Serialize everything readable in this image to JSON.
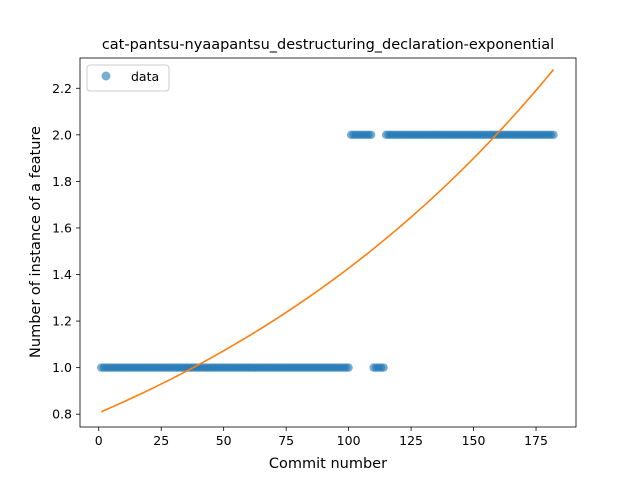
{
  "chart_data": {
    "type": "scatter",
    "title": "cat-pantsu-nyaapantsu_destructuring_declaration-exponential",
    "xlabel": "Commit number",
    "ylabel": "Number of instance of a feature",
    "xlim": [
      -7.5,
      191
    ],
    "ylim": [
      0.745,
      2.33
    ],
    "xticks": [
      0,
      25,
      50,
      75,
      100,
      125,
      150,
      175
    ],
    "yticks": [
      0.8,
      1.0,
      1.2,
      1.4,
      1.6,
      1.8,
      2.0,
      2.2
    ],
    "ytick_labels": [
      "0.8",
      "1.0",
      "1.2",
      "1.4",
      "1.6",
      "1.8",
      "2.0",
      "2.2"
    ],
    "grid": false,
    "legend": {
      "position": "upper-left",
      "entries": [
        "data"
      ]
    },
    "series": [
      {
        "name": "data",
        "kind": "scatter",
        "color": "#1f77b4",
        "segments": [
          {
            "x_from": 1,
            "x_to": 100,
            "y": 1
          },
          {
            "x_from": 101,
            "x_to": 109,
            "y": 2
          },
          {
            "x_from": 110,
            "x_to": 114,
            "y": 1
          },
          {
            "x_from": 115,
            "x_to": 182,
            "y": 2
          }
        ]
      },
      {
        "kind": "fit-line",
        "color": "#ff7f0e",
        "model": "exponential",
        "a": 0.8059,
        "b": 0.005715,
        "x_range": [
          1,
          182
        ]
      }
    ]
  }
}
